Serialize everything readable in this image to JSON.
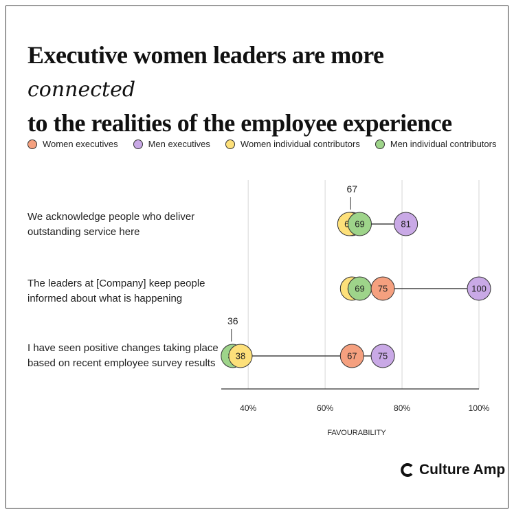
{
  "header": {
    "title_part1": "Executive women leaders are more",
    "title_highlight": "connected",
    "title_part2": "to the realities of the employee experience"
  },
  "brand": {
    "name": "Culture Amp"
  },
  "chart_data": {
    "type": "dot",
    "title": "Executive women leaders are more connected to the realities of the employee experience",
    "xlabel": "FAVOURABILITY",
    "xlim": [
      0.33,
      1.0
    ],
    "xticks": [
      {
        "value": 0.4,
        "label": "40%"
      },
      {
        "value": 0.6,
        "label": "60%"
      },
      {
        "value": 0.8,
        "label": "80%"
      },
      {
        "value": 1.0,
        "label": "100%"
      }
    ],
    "grid": true,
    "legend_position": "top-left",
    "categories": [
      [
        "We acknowledge people who deliver",
        "outstanding service here"
      ],
      [
        "The leaders at [Company] keep people",
        "informed about what is happening"
      ],
      [
        "I have seen positive changes taking place",
        "based on recent employee survey results"
      ]
    ],
    "series": [
      {
        "name": "Women executives",
        "color": "#F5A07F",
        "values": [
          67,
          75,
          67
        ]
      },
      {
        "name": "Men executives",
        "color": "#C9A9E6",
        "values": [
          81,
          100,
          75
        ]
      },
      {
        "name": "Women individual contributors",
        "color": "#FDE07A",
        "values": [
          67,
          67,
          38
        ]
      },
      {
        "name": "Men individual contributors",
        "color": "#9ED48A",
        "values": [
          69,
          69,
          36
        ]
      }
    ],
    "annotations": [
      {
        "row": 0,
        "value": 67,
        "label": "67"
      },
      {
        "row": 2,
        "value": 36,
        "label": "36"
      }
    ]
  }
}
